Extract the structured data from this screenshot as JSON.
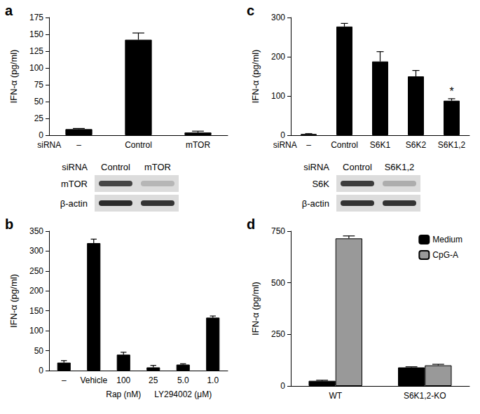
{
  "chart_data": [
    {
      "type": "bar",
      "title": "a",
      "ylabel": "IFN-α (pg/ml)",
      "xlabel": "siRNA",
      "categories": [
        "–",
        "Control",
        "mTOR"
      ],
      "values": [
        9,
        142,
        4
      ],
      "errors": [
        1,
        10,
        2
      ],
      "color": "#000000",
      "ylim": [
        0,
        175
      ],
      "yticks": [
        0,
        25,
        50,
        75,
        100,
        125,
        150,
        175
      ],
      "grid": false
    },
    {
      "type": "bar",
      "title": "b",
      "ylabel": "IFN-α (pg/ml)",
      "categories": [
        "–",
        "Vehicle",
        "100",
        "25",
        "5.0",
        "1.0"
      ],
      "values": [
        20,
        320,
        40,
        8,
        15,
        133
      ],
      "errors": [
        5,
        10,
        6,
        5,
        2,
        4
      ],
      "groups": [
        {
          "label": "Rap (nM)",
          "members": [
            "100"
          ]
        },
        {
          "label": "LY294002 (μM)",
          "members": [
            "25",
            "5.0",
            "1.0"
          ]
        }
      ],
      "color": "#000000",
      "ylim": [
        0,
        350
      ],
      "yticks": [
        0,
        50,
        100,
        150,
        200,
        250,
        300,
        350
      ],
      "grid": false
    },
    {
      "type": "bar",
      "title": "c",
      "ylabel": "IFN-α (pg/ml)",
      "xlabel": "siRNA",
      "categories": [
        "–",
        "Control",
        "S6K1",
        "S6K2",
        "S6K1,2"
      ],
      "values": [
        3,
        277,
        188,
        150,
        88
      ],
      "errors": [
        1,
        8,
        25,
        15,
        5
      ],
      "annotations": [
        {
          "text": "*",
          "category": "S6K1,2"
        }
      ],
      "color": "#000000",
      "ylim": [
        0,
        300
      ],
      "yticks": [
        0,
        100,
        200,
        300
      ],
      "grid": false
    },
    {
      "type": "bar",
      "title": "d",
      "ylabel": "IFN-α (pg/ml)",
      "categories": [
        "WT",
        "S6K1,2-KO"
      ],
      "series": [
        {
          "name": "Medium",
          "color": "#000000",
          "values": [
            25,
            90
          ],
          "errors": [
            3,
            3
          ]
        },
        {
          "name": "CpG-A",
          "color": "#999999",
          "values": [
            715,
            100
          ],
          "errors": [
            12,
            5
          ]
        }
      ],
      "legend": "upper right",
      "ylim": [
        0,
        750
      ],
      "yticks": [
        0,
        250,
        500,
        750
      ],
      "grid": false
    }
  ],
  "blots": [
    {
      "panel": "a",
      "header": "siRNA",
      "columns": [
        "Control",
        "mTOR"
      ],
      "rows": [
        "mTOR",
        "β-actin"
      ],
      "intensity": [
        [
          0.8,
          0.2
        ],
        [
          0.95,
          0.9
        ]
      ]
    },
    {
      "panel": "c",
      "header": "siRNA",
      "columns": [
        "Control",
        "S6K1,2"
      ],
      "rows": [
        "S6K",
        "β-actin"
      ],
      "intensity": [
        [
          0.85,
          0.25
        ],
        [
          0.9,
          0.9
        ]
      ]
    }
  ]
}
